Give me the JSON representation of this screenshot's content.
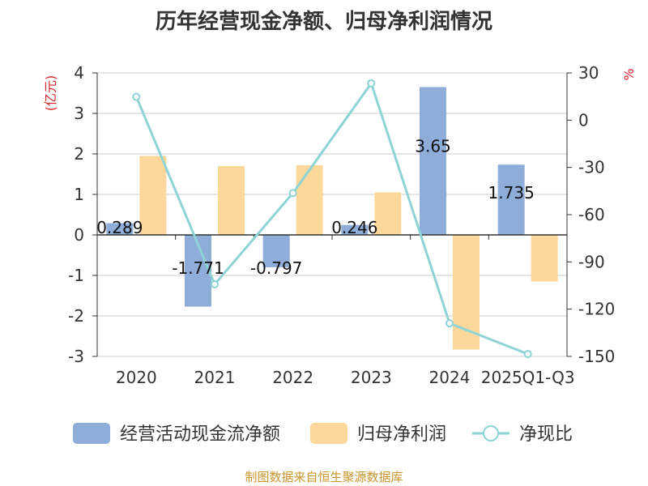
{
  "title": "历年经营现金净额、归母净利润情况",
  "source": "制图数据来自恒生聚源数据库",
  "colors": {
    "cashflow": "#8eadd9",
    "profit": "#fdd89a",
    "ratio": "#8ed4d6",
    "unit": "#d9262c"
  },
  "chart_data": {
    "type": "bar",
    "categories": [
      "2020",
      "2021",
      "2022",
      "2023",
      "2024",
      "2025Q1-Q3"
    ],
    "y_left": {
      "label": "(亿元)",
      "range": [
        -3,
        4
      ],
      "ticks": [
        4,
        3,
        2,
        1,
        0,
        -1,
        -2,
        -3
      ]
    },
    "y_right": {
      "label": "%",
      "range": [
        -150,
        30
      ],
      "ticks": [
        30,
        0,
        -30,
        -60,
        -90,
        -120,
        -150
      ]
    },
    "grid": true,
    "legend_position": "bottom",
    "series": [
      {
        "name": "经营活动现金流净额",
        "type": "bar",
        "axis": "left",
        "values": [
          0.289,
          -1.771,
          -0.797,
          0.246,
          3.65,
          1.735
        ],
        "labels": [
          "0.289",
          "-1.771",
          "-0.797",
          "0.246",
          "3.65",
          "1.735"
        ]
      },
      {
        "name": "归母净利润",
        "type": "bar",
        "axis": "left",
        "values": [
          1.95,
          1.7,
          1.72,
          1.05,
          -2.83,
          -1.15
        ]
      },
      {
        "name": "净现比",
        "type": "line",
        "axis": "right",
        "values": [
          14.8,
          -104.2,
          -46.3,
          23.4,
          -129,
          -148.5
        ]
      }
    ]
  }
}
